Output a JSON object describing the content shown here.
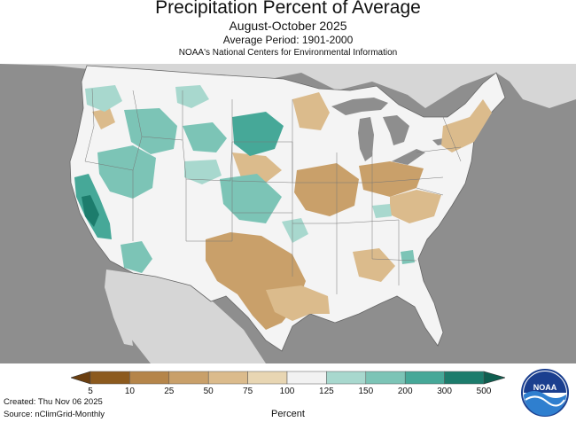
{
  "header": {
    "title": "Precipitation Percent of Average",
    "subtitle": "August-October 2025",
    "period": "Average Period: 1901-2000",
    "organization": "NOAA's National Centers for Environmental Information"
  },
  "legend": {
    "ticks": [
      "5",
      "10",
      "25",
      "50",
      "75",
      "100",
      "125",
      "150",
      "200",
      "300",
      "500"
    ],
    "colors": [
      "#8c5a1e",
      "#b5854a",
      "#c9a06a",
      "#dbbb8c",
      "#e8d6b3",
      "#f2f2f2",
      "#f2f2f2",
      "#a8d8ce",
      "#7cc4b6",
      "#46a898",
      "#1c7c6c"
    ],
    "unit_label": "Percent"
  },
  "footer": {
    "created": "Created: Thu Nov 06 2025",
    "source": "Source: nClimGrid-Monthly"
  },
  "logo": {
    "text": "NOAA",
    "icon": "noaa-logo-icon"
  },
  "palette": {
    "ocean": "#8e8e8e",
    "land_neighbors": "#d6d6d6",
    "us_land": "#f4f4f4",
    "lakes": "#8e8e8e",
    "dry_strong": "#c9a06a",
    "dry_light": "#dbbb8c",
    "wet_light": "#a8d8ce",
    "wet_strong": "#46a898",
    "wet_extreme": "#1c7c6c"
  }
}
